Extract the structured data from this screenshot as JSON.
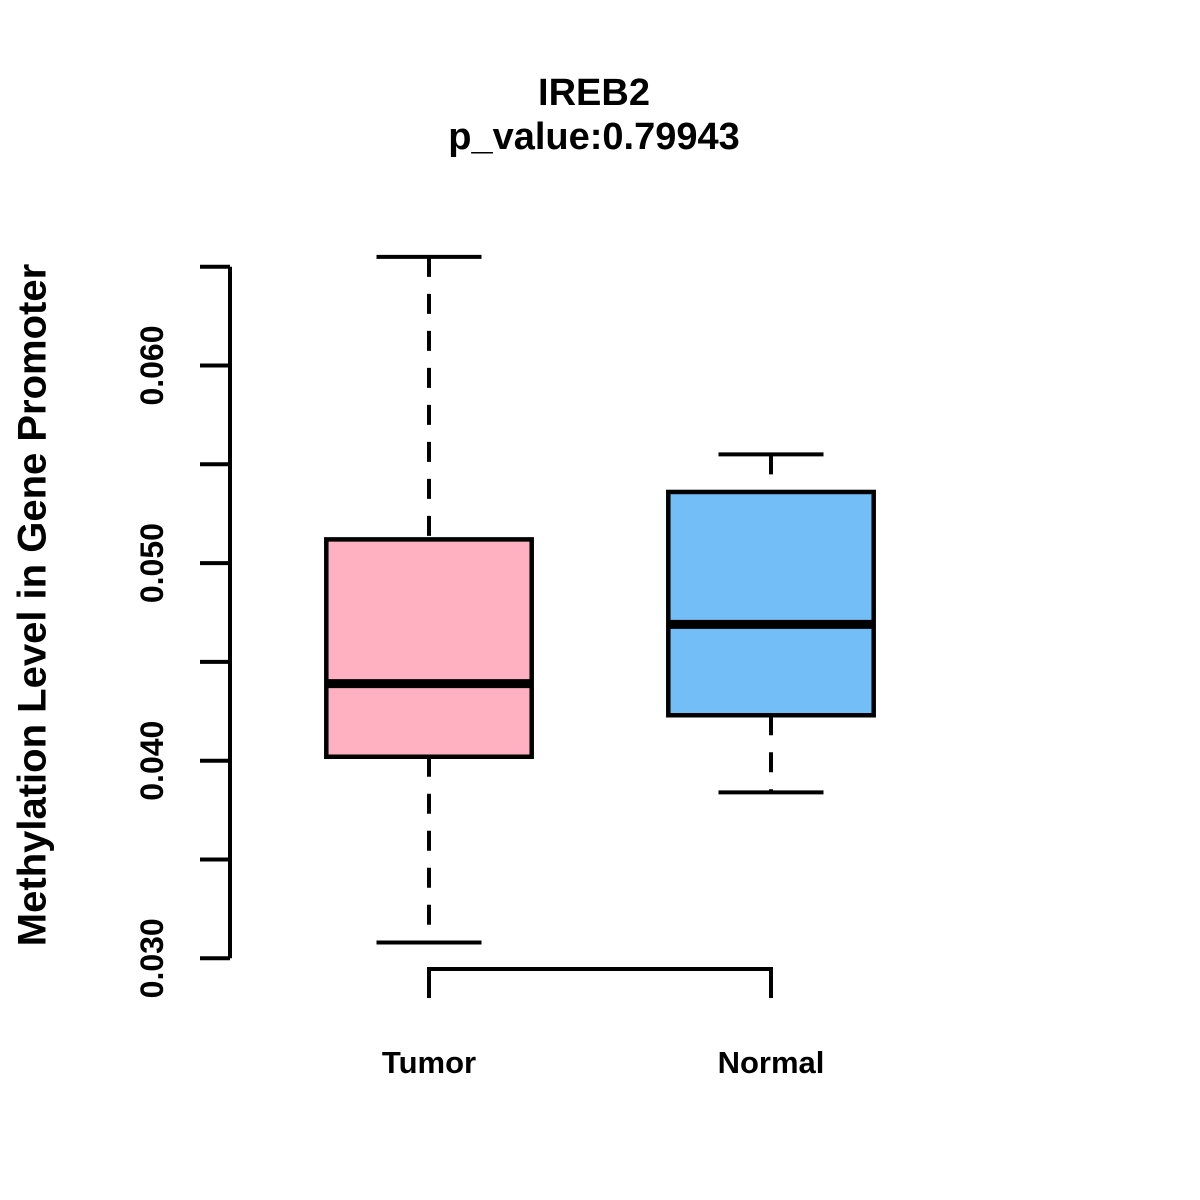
{
  "chart_data": {
    "type": "boxplot",
    "title": "IREB2",
    "subtitle": "p_value:0.79943",
    "ylabel": "Methylation Level in Gene Promoter",
    "xlabel": "",
    "categories": [
      "Tumor",
      "Normal"
    ],
    "series": [
      {
        "name": "Tumor",
        "color": "#FFB1C1",
        "whisker_low": 0.0308,
        "q1": 0.0402,
        "median": 0.0439,
        "q3": 0.0512,
        "whisker_high": 0.0655
      },
      {
        "name": "Normal",
        "color": "#74BEF7",
        "whisker_low": 0.0384,
        "q1": 0.0423,
        "median": 0.0469,
        "q3": 0.0536,
        "whisker_high": 0.0555
      }
    ],
    "y_axis": {
      "range": [
        0.03,
        0.065
      ],
      "ticks": [
        0.03,
        0.035,
        0.04,
        0.045,
        0.05,
        0.055,
        0.06,
        0.065
      ],
      "labeled_tick_values": [
        0.03,
        0.04,
        0.05,
        0.06
      ],
      "tick_labels": [
        "0.030",
        "0.040",
        "0.050",
        "0.060"
      ],
      "grid": false
    },
    "legend": "none",
    "stroke_color": "#000000",
    "background_color": "#FFFFFF"
  }
}
